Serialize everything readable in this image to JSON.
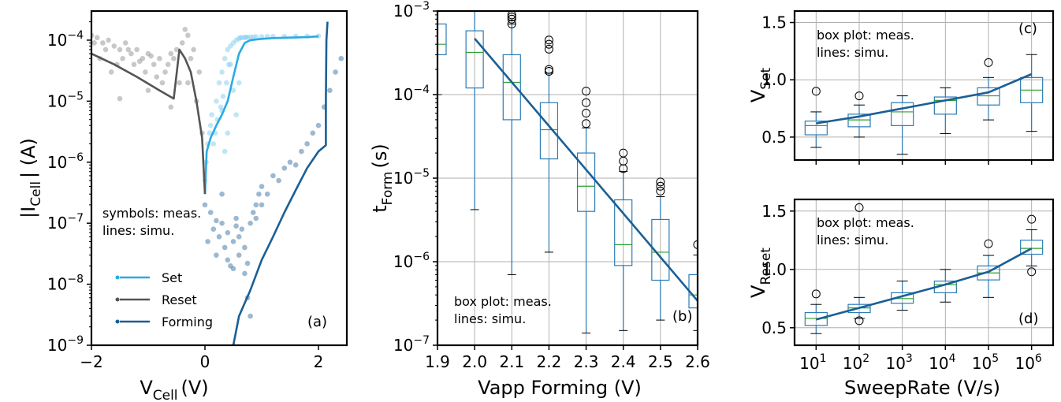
{
  "chart_data": [
    {
      "id": "a",
      "type": "scatter",
      "panel_label": "(a)",
      "xlabel": {
        "main": "V",
        "sub": "Cell",
        "unit": "(V)"
      },
      "ylabel": {
        "main": "|I",
        "sub": "Cell",
        "unit": "| (A)"
      },
      "xlim": [
        -2,
        2.5
      ],
      "ylim": [
        1e-09,
        0.0003
      ],
      "yscale": "log",
      "xticks": [
        -2,
        0,
        2
      ],
      "xtick_labels": [
        "−2",
        "0",
        "2"
      ],
      "yticks": [
        1e-09,
        1e-08,
        1e-07,
        1e-06,
        1e-05,
        0.0001
      ],
      "ytick_labels": [
        {
          "b": "10",
          "e": "−9"
        },
        {
          "b": "10",
          "e": "−8"
        },
        {
          "b": "10",
          "e": "−7"
        },
        {
          "b": "10",
          "e": "−6"
        },
        {
          "b": "10",
          "e": "−5"
        },
        {
          "b": "10",
          "e": "−4"
        }
      ],
      "annotation": [
        "symbols: meas.",
        "lines: simu."
      ],
      "legend": {
        "placement": "lower-left",
        "entries": [
          {
            "label": "Set",
            "color": "#29abe2"
          },
          {
            "label": "Reset",
            "color": "#555555"
          },
          {
            "label": "Forming",
            "color": "#1a5f95"
          }
        ]
      },
      "series": [
        {
          "name": "Set",
          "kind": "line",
          "color": "#29abe2",
          "x": [
            0.0,
            0.03,
            0.1,
            0.2,
            0.3,
            0.4,
            0.5,
            0.6,
            0.7,
            0.8,
            1.0,
            1.2,
            1.5,
            1.8,
            2.0
          ],
          "y": [
            3e-07,
            1.5e-06,
            2.5e-06,
            4e-06,
            6e-06,
            1e-05,
            2.5e-05,
            6e-05,
            9e-05,
            0.0001,
            0.000105,
            0.000108,
            0.00011,
            0.000112,
            0.000115
          ]
        },
        {
          "name": "Reset",
          "kind": "line",
          "color": "#555555",
          "x": [
            -2.0,
            -1.6,
            -1.2,
            -0.8,
            -0.55,
            -0.45,
            -0.35,
            -0.25,
            -0.15,
            -0.05,
            0.0
          ],
          "y": [
            6e-05,
            4e-05,
            2.5e-05,
            1.5e-05,
            1.1e-05,
            7e-05,
            5e-05,
            3e-05,
            1e-05,
            2.5e-06,
            3e-07
          ]
        },
        {
          "name": "Forming",
          "kind": "line",
          "color": "#1a5f95",
          "x": [
            0.5,
            0.6,
            0.8,
            1.0,
            1.2,
            1.4,
            1.6,
            1.8,
            2.0,
            2.13,
            2.13,
            2.14,
            2.16
          ],
          "y": [
            1e-09,
            3e-09,
            8e-09,
            2.5e-08,
            6e-08,
            1.5e-07,
            3.5e-07,
            8e-07,
            1.5e-06,
            1.9e-06,
            1e-05,
            0.0001,
            0.0002
          ]
        },
        {
          "name": "Set meas.",
          "kind": "points",
          "color": "#8ccfee",
          "x": [
            0.0,
            0.02,
            0.05,
            0.08,
            0.1,
            0.12,
            0.15,
            0.18,
            0.2,
            0.22,
            0.25,
            0.28,
            0.3,
            0.32,
            0.35,
            0.38,
            0.4,
            0.42,
            0.45,
            0.5,
            0.55,
            0.6,
            0.62,
            0.65,
            0.7,
            0.72,
            0.75,
            0.8,
            0.85,
            0.9,
            1.0,
            1.1,
            1.2,
            1.4,
            1.6,
            1.8,
            2.0,
            0.3,
            0.4,
            0.5,
            0.55,
            0.45,
            0.35,
            0.6
          ],
          "y": [
            5e-07,
            1e-06,
            2e-06,
            3e-06,
            4e-06,
            6e-06,
            2e-06,
            3e-06,
            1e-05,
            5e-06,
            2e-05,
            8e-06,
            3e-05,
            1.2e-05,
            5e-05,
            2e-05,
            7e-05,
            4e-05,
            8e-05,
            9e-05,
            0.0001,
            0.000105,
            0.00011,
            0.00011,
            0.00011,
            0.000112,
            0.000112,
            0.000112,
            0.000113,
            0.000114,
            0.000114,
            0.000115,
            0.000115,
            0.000115,
            0.000116,
            0.000116,
            0.000117,
            7e-06,
            3e-06,
            1.5e-05,
            6e-06,
            4e-05,
            1.5e-06,
            2e-05
          ]
        },
        {
          "name": "Reset meas.",
          "kind": "points",
          "color": "#9a9a9a",
          "x": [
            -2.0,
            -1.9,
            -1.8,
            -1.7,
            -1.6,
            -1.5,
            -1.4,
            -1.3,
            -1.2,
            -1.1,
            -1.0,
            -0.9,
            -0.8,
            -0.7,
            -0.6,
            -0.5,
            -0.4,
            -0.3,
            -0.2,
            -0.1,
            -1.85,
            -1.65,
            -1.45,
            -1.25,
            -1.05,
            -0.85,
            -0.65,
            -0.45,
            -0.35,
            -0.25,
            -1.95,
            -1.75,
            -1.55,
            -1.35,
            -1.15,
            -0.95,
            -0.75,
            -0.55,
            -0.15,
            -0.05,
            -1.5,
            -1.0,
            -0.6,
            -0.3
          ],
          "y": [
            0.00012,
            0.00011,
            9e-05,
            0.0001,
            8e-05,
            7e-05,
            9e-05,
            6e-05,
            7e-05,
            5e-05,
            6e-05,
            4e-05,
            5e-05,
            3e-05,
            6e-05,
            7e-05,
            9e-05,
            0.00012,
            7e-05,
            3e-05,
            5e-05,
            3e-05,
            5e-05,
            4e-05,
            3e-05,
            2.5e-05,
            4e-05,
            2e-05,
            0.00015,
            5e-05,
            9e-05,
            7e-05,
            4e-05,
            7e-05,
            4.5e-05,
            5.5e-05,
            2e-05,
            5e-05,
            1e-05,
            3e-06,
            1.1e-05,
            1.5e-05,
            8e-06,
            2e-05
          ]
        },
        {
          "name": "Forming meas.",
          "kind": "points",
          "color": "#4a7fab",
          "x": [
            0.0,
            0.05,
            0.1,
            0.15,
            0.2,
            0.25,
            0.3,
            0.35,
            0.4,
            0.45,
            0.5,
            0.55,
            0.6,
            0.65,
            0.7,
            0.75,
            0.8,
            0.85,
            0.9,
            0.95,
            1.0,
            1.1,
            1.2,
            1.3,
            1.4,
            1.5,
            1.6,
            1.7,
            1.8,
            1.9,
            2.0,
            2.1,
            2.2,
            2.3,
            2.4,
            0.3,
            0.5,
            0.7,
            0.9,
            0.4,
            0.6,
            0.8,
            1.0,
            0.2,
            0.55,
            0.75
          ],
          "y": [
            2e-07,
            5e-08,
            1.5e-07,
            8e-08,
            3e-08,
            6e-08,
            1e-07,
            4e-08,
            7e-08,
            2e-08,
            5e-08,
            1.2e-07,
            3e-08,
            8e-08,
            1.5e-08,
            6e-09,
            1e-07,
            1.5e-07,
            2e-07,
            3e-07,
            4e-07,
            3e-07,
            6e-07,
            5e-07,
            8e-07,
            1e-06,
            9e-07,
            1.5e-06,
            2e-06,
            3e-06,
            4e-06,
            8e-06,
            1.5e-05,
            3e-05,
            5e-05,
            3e-07,
            1.8e-08,
            4e-08,
            1.2e-07,
            2.5e-08,
            6e-08,
            3e-09,
            2e-07,
            1.1e-07,
            9e-08,
            2.2e-08
          ]
        }
      ]
    },
    {
      "id": "b",
      "type": "box",
      "panel_label": "(b)",
      "xlabel": "Vapp Forming (V)",
      "ylabel": {
        "main": "t",
        "sub": "Form",
        "unit": "(s)"
      },
      "xlim": [
        1.9,
        2.6
      ],
      "ylim": [
        1e-07,
        0.001
      ],
      "yscale": "log",
      "grid": true,
      "xticks": [
        1.9,
        2.0,
        2.1,
        2.2,
        2.3,
        2.4,
        2.5,
        2.6
      ],
      "xtick_labels": [
        "1.9",
        "2.0",
        "2.1",
        "2.2",
        "2.3",
        "2.4",
        "2.5",
        "2.6"
      ],
      "yticks": [
        1e-07,
        1e-06,
        1e-05,
        0.0001,
        0.001
      ],
      "ytick_labels": [
        {
          "b": "10",
          "e": "−7"
        },
        {
          "b": "10",
          "e": "−6"
        },
        {
          "b": "10",
          "e": "−5"
        },
        {
          "b": "10",
          "e": "−4"
        },
        {
          "b": "10",
          "e": "−3"
        }
      ],
      "annotation": [
        "box plot: meas.",
        "lines: simu."
      ],
      "boxes": [
        {
          "x": 1.9,
          "q1": 0.0003,
          "med": 0.0004,
          "q3": 0.0007,
          "wlo": 0.0001,
          "whi": 0.001,
          "out": []
        },
        {
          "x": 2.0,
          "q1": 0.00012,
          "med": 0.00032,
          "q3": 0.00058,
          "wlo": 4.2e-06,
          "whi": 0.001,
          "out": []
        },
        {
          "x": 2.1,
          "q1": 5e-05,
          "med": 0.00014,
          "q3": 0.0003,
          "wlo": 7e-07,
          "whi": 0.0007,
          "out": [
            0.0007,
            0.0008,
            0.00085,
            0.0009
          ]
        },
        {
          "x": 2.2,
          "q1": 1.7e-05,
          "med": 3.8e-05,
          "q3": 8e-05,
          "wlo": 1.3e-06,
          "whi": 0.00018,
          "out": [
            0.00019,
            0.0002,
            0.00035,
            0.0004,
            0.00045
          ]
        },
        {
          "x": 2.3,
          "q1": 4e-06,
          "med": 8e-06,
          "q3": 2e-05,
          "wlo": 1.4e-07,
          "whi": 4e-05,
          "out": [
            4.5e-05,
            6e-05,
            8e-05,
            0.00011
          ]
        },
        {
          "x": 2.4,
          "q1": 9e-07,
          "med": 1.6e-06,
          "q3": 5.5e-06,
          "wlo": 1.5e-07,
          "whi": 1.2e-05,
          "out": [
            1.3e-05,
            1.6e-05,
            2e-05
          ]
        },
        {
          "x": 2.5,
          "q1": 6e-07,
          "med": 1.3e-06,
          "q3": 3.2e-06,
          "wlo": 2e-07,
          "whi": 6e-06,
          "out": [
            7e-06,
            8e-06,
            9e-06
          ]
        },
        {
          "x": 2.6,
          "q1": 2.8e-07,
          "med": 4e-07,
          "q3": 7e-07,
          "wlo": 1.5e-07,
          "whi": 1.2e-06,
          "out": [
            1.6e-06
          ]
        }
      ],
      "series": [
        {
          "name": "simu",
          "kind": "line",
          "color": "#1a5f95",
          "x": [
            2.0,
            2.6
          ],
          "y": [
            0.00047,
            3.4e-07
          ]
        }
      ]
    },
    {
      "id": "c",
      "type": "box",
      "panel_label": "(c)",
      "xlabel": "",
      "ylabel": {
        "main": "V",
        "sub": "Set",
        "unit": ""
      },
      "xlim": [
        0.5,
        6.5
      ],
      "ylim": [
        0.3,
        1.6
      ],
      "grid": true,
      "xticks": [
        1,
        2,
        3,
        4,
        5,
        6
      ],
      "xtick_labels": [],
      "yticks": [
        0.5,
        1.0,
        1.5
      ],
      "ytick_labels": [
        "0.5",
        "1.0",
        "1.5"
      ],
      "annotation": [
        "box plot: meas.",
        "lines: simu."
      ],
      "boxes": [
        {
          "x": 1,
          "q1": 0.52,
          "med": 0.6,
          "q3": 0.64,
          "wlo": 0.41,
          "whi": 0.72,
          "out": [
            0.9
          ]
        },
        {
          "x": 2,
          "q1": 0.59,
          "med": 0.65,
          "q3": 0.7,
          "wlo": 0.5,
          "whi": 0.78,
          "out": [
            0.86
          ]
        },
        {
          "x": 3,
          "q1": 0.6,
          "med": 0.72,
          "q3": 0.8,
          "wlo": 0.35,
          "whi": 0.86,
          "out": []
        },
        {
          "x": 4,
          "q1": 0.7,
          "med": 0.82,
          "q3": 0.85,
          "wlo": 0.53,
          "whi": 0.93,
          "out": []
        },
        {
          "x": 5,
          "q1": 0.78,
          "med": 0.86,
          "q3": 0.93,
          "wlo": 0.65,
          "whi": 1.02,
          "out": [
            1.15
          ]
        },
        {
          "x": 6,
          "q1": 0.8,
          "med": 0.91,
          "q3": 1.02,
          "wlo": 0.55,
          "whi": 1.22,
          "out": []
        }
      ],
      "series": [
        {
          "name": "simu",
          "kind": "line",
          "color": "#1a5f95",
          "x": [
            1,
            2,
            3,
            4,
            5,
            6
          ],
          "y": [
            0.62,
            0.68,
            0.75,
            0.82,
            0.89,
            1.05
          ]
        }
      ]
    },
    {
      "id": "d",
      "type": "box",
      "panel_label": "(d)",
      "xlabel": "SweepRate (V/s)",
      "ylabel": {
        "main": "V",
        "sub": "Reset",
        "unit": ""
      },
      "xlim": [
        0.5,
        6.5
      ],
      "ylim": [
        0.35,
        1.6
      ],
      "grid": true,
      "xticks": [
        1,
        2,
        3,
        4,
        5,
        6
      ],
      "xtick_labels": [
        {
          "b": "10",
          "e": "1"
        },
        {
          "b": "10",
          "e": "2"
        },
        {
          "b": "10",
          "e": "3"
        },
        {
          "b": "10",
          "e": "4"
        },
        {
          "b": "10",
          "e": "5"
        },
        {
          "b": "10",
          "e": "6"
        }
      ],
      "yticks": [
        0.5,
        1.0,
        1.5
      ],
      "ytick_labels": [
        "0.5",
        "1.0",
        "1.5"
      ],
      "annotation": [
        "box plot: meas.",
        "lines: simu."
      ],
      "boxes": [
        {
          "x": 1,
          "q1": 0.52,
          "med": 0.58,
          "q3": 0.63,
          "wlo": 0.45,
          "whi": 0.7,
          "out": [
            0.79
          ]
        },
        {
          "x": 2,
          "q1": 0.63,
          "med": 0.67,
          "q3": 0.7,
          "wlo": 0.58,
          "whi": 0.76,
          "out": [
            0.56,
            1.53
          ]
        },
        {
          "x": 3,
          "q1": 0.71,
          "med": 0.75,
          "q3": 0.8,
          "wlo": 0.65,
          "whi": 0.9,
          "out": []
        },
        {
          "x": 4,
          "q1": 0.8,
          "med": 0.87,
          "q3": 0.9,
          "wlo": 0.72,
          "whi": 1.0,
          "out": []
        },
        {
          "x": 5,
          "q1": 0.91,
          "med": 0.97,
          "q3": 1.03,
          "wlo": 0.76,
          "whi": 1.12,
          "out": [
            1.22
          ]
        },
        {
          "x": 6,
          "q1": 1.13,
          "med": 1.18,
          "q3": 1.25,
          "wlo": 1.03,
          "whi": 1.34,
          "out": [
            0.98,
            1.43
          ]
        }
      ],
      "series": [
        {
          "name": "simu",
          "kind": "line",
          "color": "#1a5f95",
          "x": [
            1,
            2,
            3,
            4,
            5,
            6
          ],
          "y": [
            0.57,
            0.67,
            0.77,
            0.87,
            0.98,
            1.18
          ]
        }
      ]
    }
  ]
}
